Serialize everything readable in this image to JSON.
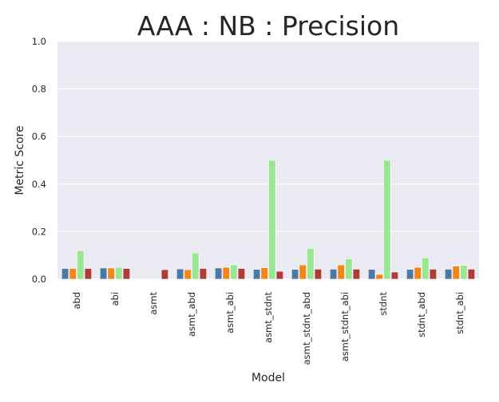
{
  "chart_data": {
    "type": "bar",
    "title": "AAA : NB : Precision",
    "xlabel": "Model",
    "ylabel": "Metric Score",
    "ylim": [
      0,
      1.0
    ],
    "yticks": [
      "0.0",
      "0.2",
      "0.4",
      "0.6",
      "0.8",
      "1.0"
    ],
    "grid": true,
    "categories": [
      "abd",
      "abi",
      "asmt",
      "asmt_abd",
      "asmt_abi",
      "asmt_stdnt",
      "asmt_stdnt_abd",
      "asmt_stdnt_abi",
      "stdnt",
      "stdnt_abd",
      "stdnt_abi"
    ],
    "series": [
      {
        "color": "#4c78a8",
        "values": [
          0.045,
          0.047,
          0.0,
          0.043,
          0.047,
          0.041,
          0.041,
          0.042,
          0.041,
          0.041,
          0.042
        ]
      },
      {
        "color": "#f58518",
        "values": [
          0.045,
          0.047,
          0.0,
          0.04,
          0.05,
          0.048,
          0.06,
          0.06,
          0.02,
          0.05,
          0.055
        ]
      },
      {
        "color": "#98e690",
        "values": [
          0.12,
          0.05,
          0.0,
          0.11,
          0.06,
          0.5,
          0.13,
          0.085,
          0.5,
          0.09,
          0.058
        ]
      },
      {
        "color": "#b03a3a",
        "values": [
          0.045,
          0.045,
          0.04,
          0.045,
          0.045,
          0.033,
          0.042,
          0.042,
          0.03,
          0.042,
          0.042
        ]
      }
    ]
  }
}
